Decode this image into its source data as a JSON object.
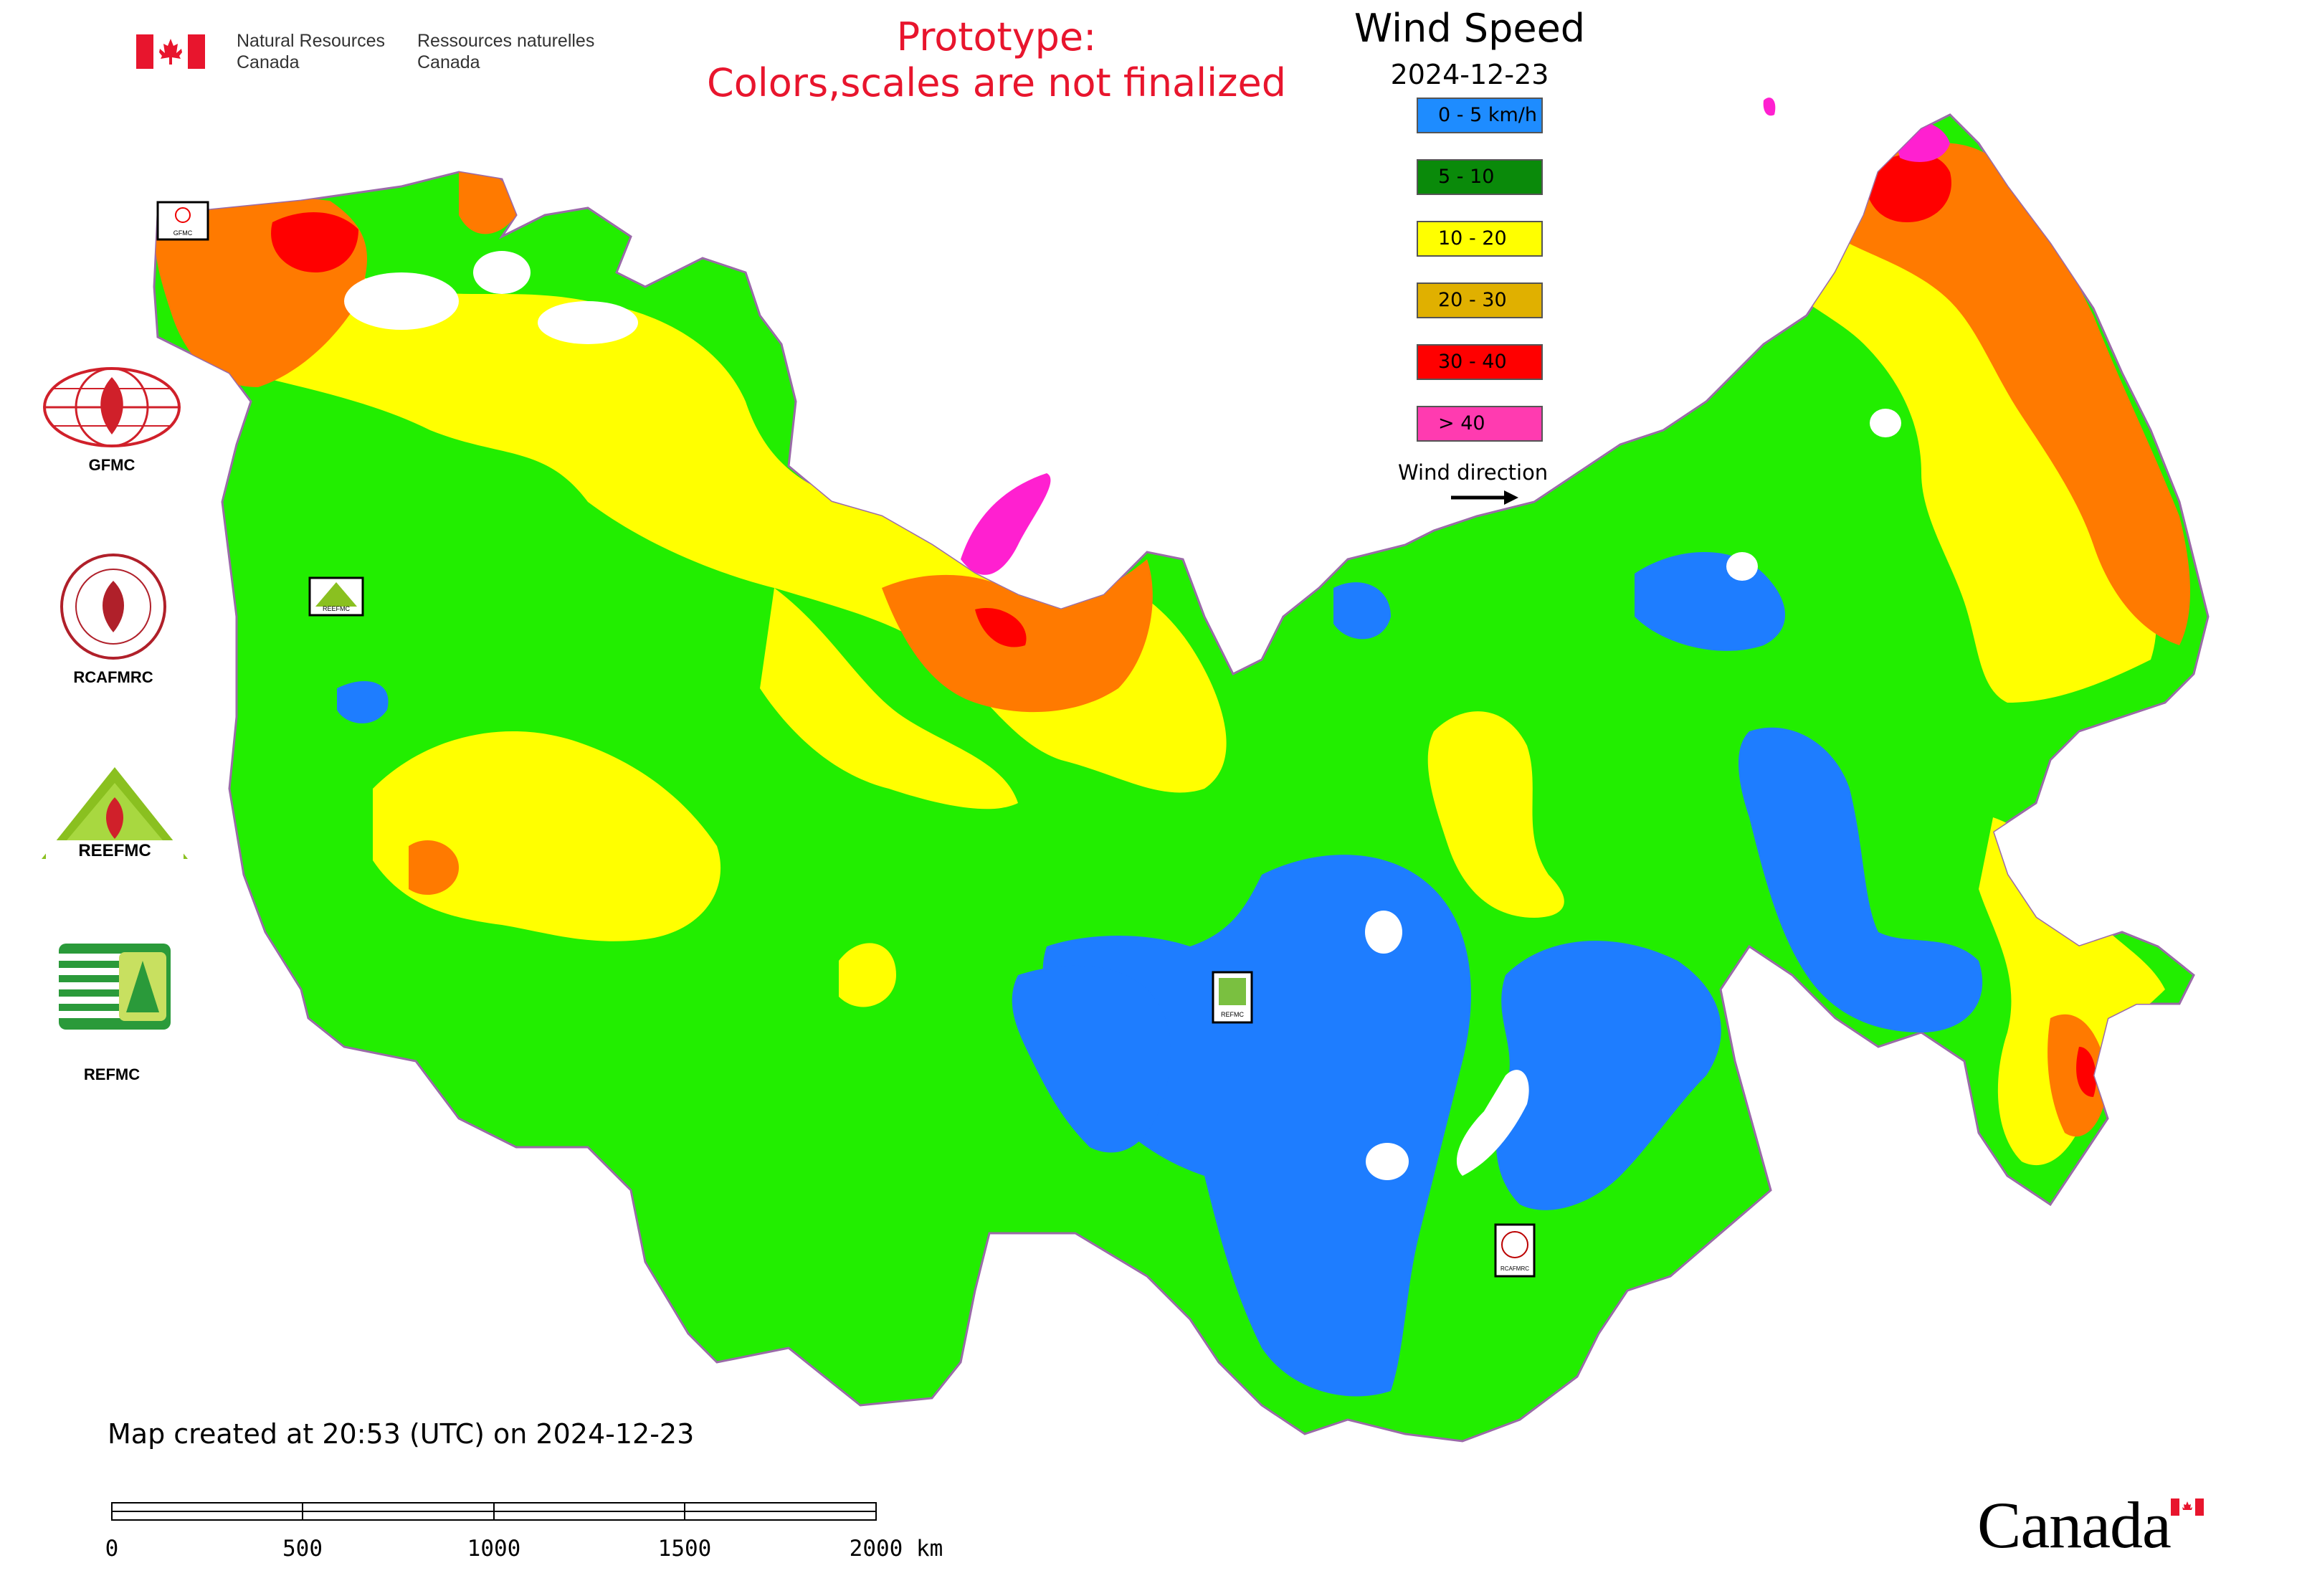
{
  "header": {
    "agency_en_line1": "Natural Resources",
    "agency_en_line2": "Canada",
    "agency_fr_line1": "Ressources naturelles",
    "agency_fr_line2": "Canada",
    "prototype_line1": "Prototype:",
    "prototype_line2": "Colors,scales are not finalized"
  },
  "legend": {
    "title": "Wind Speed",
    "date": "2024-12-23",
    "items": [
      {
        "label": "0 - 5 km/h",
        "color": "#1e8cff"
      },
      {
        "label": "5 - 10",
        "color": "#0a8a0a"
      },
      {
        "label": "10 - 20",
        "color": "#ffff00"
      },
      {
        "label": "20 - 30",
        "color": "#e0b000"
      },
      {
        "label": "30 - 40",
        "color": "#ff0000"
      },
      {
        "label": "> 40",
        "color": "#ff3bb0"
      }
    ],
    "wind_direction_label": "Wind direction"
  },
  "map_colors": {
    "land_green": "#22ee00",
    "blue": "#1e7dff",
    "yellow": "#ffff00",
    "orange": "#ff7a00",
    "red": "#ff0000",
    "magenta": "#ff20d0"
  },
  "logos": [
    {
      "caption": "GFMC"
    },
    {
      "caption": "RCAFMRC"
    },
    {
      "caption": "REFMC"
    }
  ],
  "logo_text": {
    "rceefmc": "REEFMC"
  },
  "station_markers": [
    {
      "name": "GFMC"
    },
    {
      "name": "REEFMC"
    },
    {
      "name": "REFMC"
    },
    {
      "name": "RCAFMRC"
    }
  ],
  "footer": {
    "created": "Map created at 20:53 (UTC) on 2024-12-23",
    "scale_ticks": [
      "0",
      "500",
      "1000",
      "1500",
      "2000 km"
    ],
    "wordmark": "Canada"
  }
}
